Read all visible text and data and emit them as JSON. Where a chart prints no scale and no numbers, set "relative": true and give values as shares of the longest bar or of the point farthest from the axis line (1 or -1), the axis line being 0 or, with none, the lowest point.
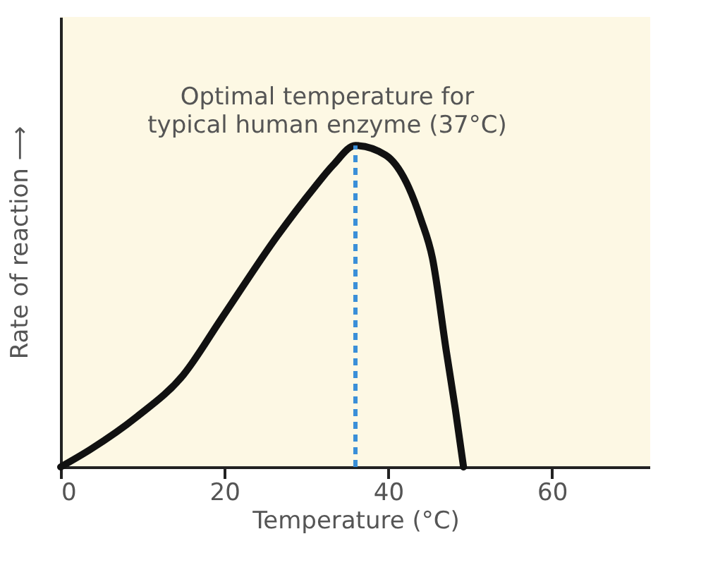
{
  "chart_data": {
    "type": "line",
    "relative": true,
    "xlabel": "Temperature (°C)",
    "ylabel": "Rate of reaction ⟶",
    "x": [
      0,
      3.6,
      9.3,
      15.0,
      19.6,
      26.5,
      31.0,
      33.3,
      36.0,
      39.7,
      42.5,
      44.0,
      45.4,
      47.1,
      48.2,
      49.2
    ],
    "series": [
      {
        "color": "#111111",
        "values": [
          0,
          0.054,
          0.156,
          0.287,
          0.46,
          0.72,
          0.87,
          0.94,
          1,
          0.97,
          0.87,
          0.77,
          0.65,
          0.36,
          0.18,
          0
        ]
      }
    ],
    "xlim": [
      0,
      72
    ],
    "xticks": [
      0,
      20,
      40,
      60
    ],
    "tick_labels": "x",
    "ref_lines": [
      {
        "axis": "x",
        "value": 36,
        "color": "#3a8fd8",
        "line_style": "dashed"
      }
    ],
    "annotations": [
      {
        "text": "Optimal temperature for\ntypical human enzyme (37°C)",
        "x": 36,
        "y": 1
      }
    ]
  }
}
